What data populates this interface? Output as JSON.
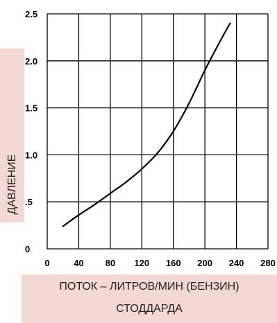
{
  "chart_data": {
    "type": "line",
    "title": "",
    "xlabel": "ПОТОК – ЛИТРОВ/МИН (БЕНЗИН)",
    "xlabel_line2": "СТОДДАРДА",
    "ylabel": "ДАВЛЕНИЕ",
    "xlim": [
      0,
      280
    ],
    "ylim": [
      0,
      2.5
    ],
    "grid": true,
    "x_ticks": [
      0,
      40,
      80,
      120,
      160,
      200,
      240,
      280
    ],
    "x_tick_labels": [
      "0",
      "40",
      "80",
      "120",
      "160",
      "200",
      "240",
      "280"
    ],
    "y_ticks": [
      0,
      0.5,
      1.0,
      1.5,
      2.0,
      2.5
    ],
    "y_tick_labels": [
      "0",
      ".5",
      "1.0",
      "1.5",
      "2.0",
      "2.5"
    ],
    "colors": {
      "line": "#000000",
      "grid": "#000000",
      "label_background": "#f4d8d3"
    },
    "series": [
      {
        "x": [
          20,
          40,
          60,
          80,
          100,
          120,
          140,
          160,
          180,
          200,
          220,
          232
        ],
        "y": [
          0.24,
          0.36,
          0.47,
          0.59,
          0.71,
          0.85,
          1.02,
          1.25,
          1.55,
          1.9,
          2.22,
          2.4
        ]
      }
    ]
  }
}
